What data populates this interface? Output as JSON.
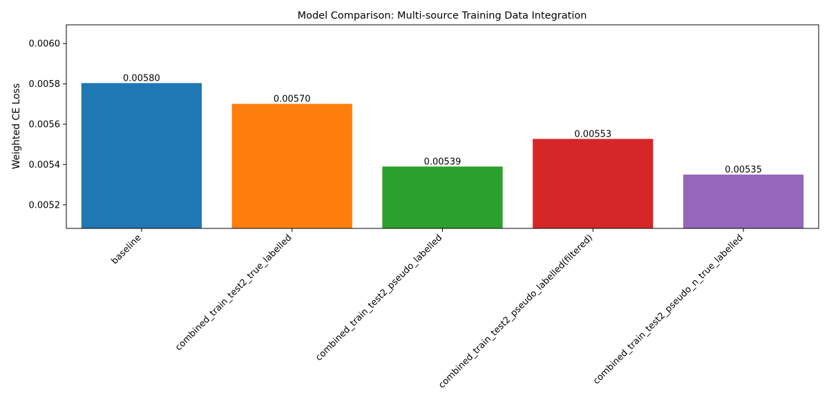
{
  "chart_data": {
    "type": "bar",
    "title": "Model Comparison: Multi-source Training Data Integration",
    "xlabel": "",
    "ylabel": "Weighted CE Loss",
    "categories": [
      "baseline",
      "combined_train_test2_true_labelled",
      "combined_train_test2_pseudo_labelled",
      "combined_train_test2_pseudo_labelled(filtered)",
      "combined_train_test2_pseudo_n_true_labelled"
    ],
    "values": [
      0.005804,
      0.005701,
      0.00539,
      0.005527,
      0.00535
    ],
    "data_labels": [
      "0.00580",
      "0.00570",
      "0.00539",
      "0.00553",
      "0.00535"
    ],
    "colors": [
      "#1f77b4",
      "#ff7f0e",
      "#2ca02c",
      "#d62728",
      "#9467bd"
    ],
    "ylim": [
      0.005083,
      0.006093
    ],
    "yticks": [
      0.0052,
      0.0054,
      0.0056,
      0.0058,
      0.006
    ],
    "ytick_labels": [
      "0.0052",
      "0.0054",
      "0.0056",
      "0.0058",
      "0.0060"
    ],
    "grid": false,
    "legend": "none"
  }
}
